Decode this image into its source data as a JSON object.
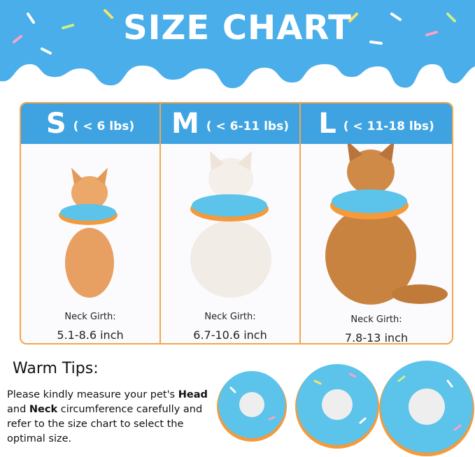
{
  "title": "SIZE CHART",
  "sizes": [
    {
      "size": "S",
      "weight": "( < 6 lbs)",
      "girth_label": "Neck Girth:",
      "girth": "5.1-8.6 inch"
    },
    {
      "size": "M",
      "weight": "( < 6-11 lbs)",
      "girth_label": "Neck Girth:",
      "girth": "6.7-10.6 inch"
    },
    {
      "size": "L",
      "weight": "( < 11-18 lbs)",
      "girth_label": "Neck Girth:",
      "girth": "7.8-13 inch"
    }
  ],
  "tips": {
    "title": "Warm Tips:",
    "t1": "Please kindly measure your pet's ",
    "b1": "Head",
    "t2": " and ",
    "b2": "Neck",
    "t3": " circumference carefully and refer to the size chart to select the optimal size."
  },
  "colors": {
    "banner": "#4aaeea",
    "header": "#3fa3e2",
    "border": "#f3a64a",
    "donut": "#5cc3ea"
  }
}
